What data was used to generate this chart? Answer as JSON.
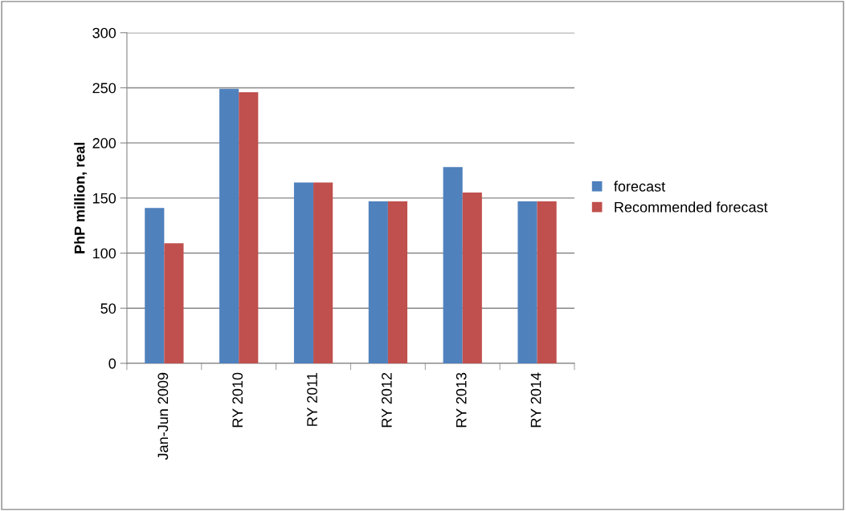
{
  "chart_data": {
    "type": "bar",
    "ylabel": "PhP million, real",
    "categories": [
      "Jan-Jun 2009",
      "RY 2010",
      "RY 2011",
      "RY 2012",
      "RY 2013",
      "RY 2014"
    ],
    "series": [
      {
        "name": "forecast",
        "color": "#4f81bd",
        "values": [
          141,
          249,
          164,
          147,
          178,
          147
        ]
      },
      {
        "name": "Recommended forecast",
        "color": "#c0504d",
        "values": [
          109,
          246,
          164,
          147,
          155,
          147
        ]
      }
    ],
    "ylim": [
      0,
      300
    ],
    "yticks": [
      0,
      50,
      100,
      150,
      200,
      250,
      300
    ],
    "grid": "y",
    "legend": "right"
  }
}
